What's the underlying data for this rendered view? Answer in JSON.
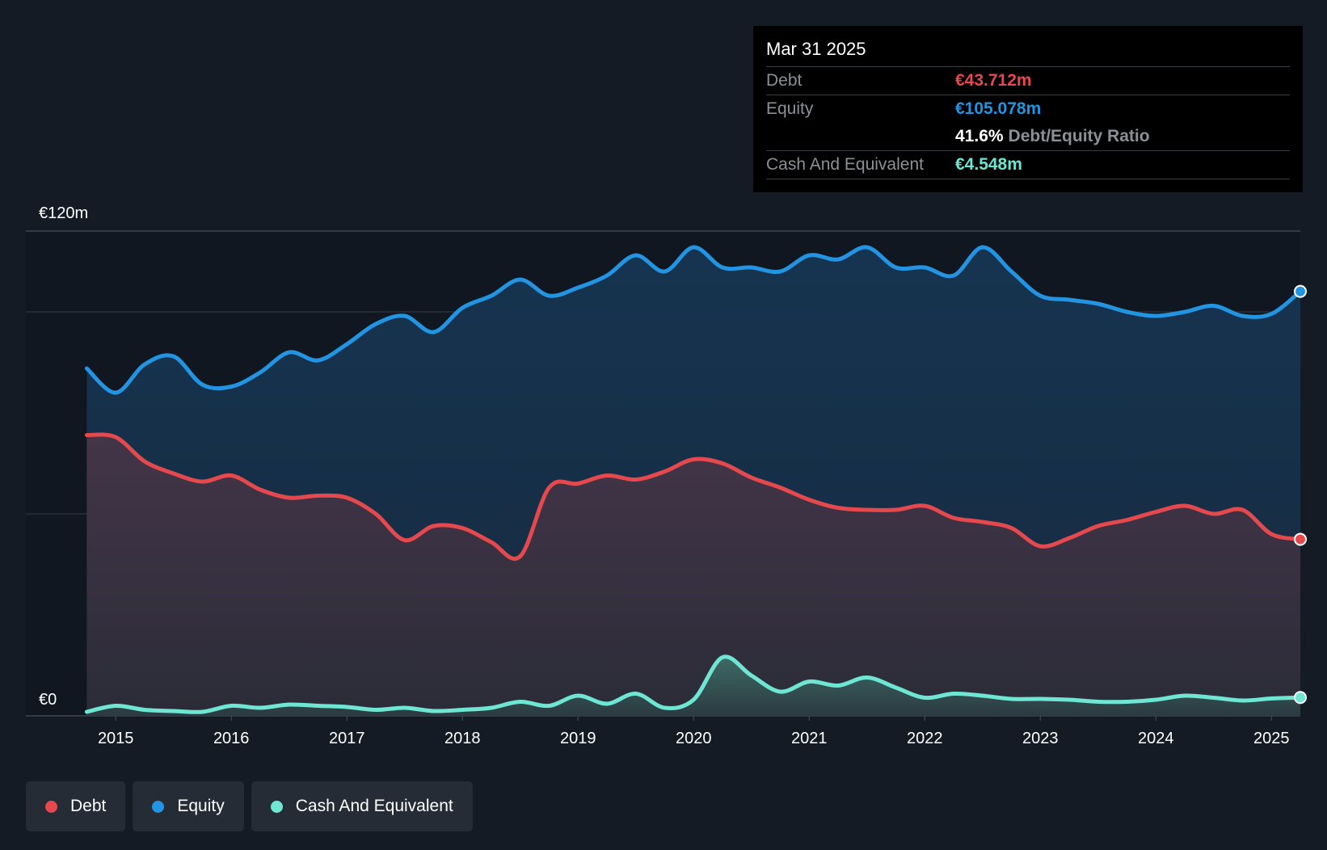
{
  "tooltip": {
    "date": "Mar 31 2025",
    "debt_label": "Debt",
    "debt_value": "€43.712m",
    "equity_label": "Equity",
    "equity_value": "€105.078m",
    "ratio_value": "41.6%",
    "ratio_label": "Debt/Equity Ratio",
    "cash_label": "Cash And Equivalent",
    "cash_value": "€4.548m"
  },
  "legend": [
    {
      "label": "Debt",
      "color": "#e5484d"
    },
    {
      "label": "Equity",
      "color": "#2394e2"
    },
    {
      "label": "Cash And Equivalent",
      "color": "#6ee6d3"
    }
  ],
  "chart_data": {
    "type": "area",
    "title": "",
    "xlabel": "",
    "ylabel": "",
    "ylim": [
      0,
      120
    ],
    "xlim": [
      2014.67,
      2025.25
    ],
    "y_tick_labels": [
      {
        "value": 120,
        "label": "€120m"
      },
      {
        "value": 0,
        "label": "€0"
      }
    ],
    "x_tick_labels": [
      {
        "value": 2015,
        "label": "2015"
      },
      {
        "value": 2016,
        "label": "2016"
      },
      {
        "value": 2017,
        "label": "2017"
      },
      {
        "value": 2018,
        "label": "2018"
      },
      {
        "value": 2019,
        "label": "2019"
      },
      {
        "value": 2020,
        "label": "2020"
      },
      {
        "value": 2021,
        "label": "2021"
      },
      {
        "value": 2022,
        "label": "2022"
      },
      {
        "value": 2023,
        "label": "2023"
      },
      {
        "value": 2024,
        "label": "2024"
      },
      {
        "value": 2025,
        "label": "2025"
      }
    ],
    "gridlines": [
      120,
      100,
      50,
      0
    ],
    "series": [
      {
        "name": "Equity",
        "color": "#2394e2",
        "points": [
          [
            2014.75,
            86
          ],
          [
            2015.0,
            80
          ],
          [
            2015.25,
            87
          ],
          [
            2015.5,
            89
          ],
          [
            2015.75,
            82
          ],
          [
            2016.0,
            81.5
          ],
          [
            2016.25,
            85
          ],
          [
            2016.5,
            90
          ],
          [
            2016.75,
            88
          ],
          [
            2017.0,
            92
          ],
          [
            2017.25,
            97
          ],
          [
            2017.5,
            99
          ],
          [
            2017.75,
            95
          ],
          [
            2018.0,
            101
          ],
          [
            2018.25,
            104
          ],
          [
            2018.5,
            108
          ],
          [
            2018.75,
            104
          ],
          [
            2019.0,
            106
          ],
          [
            2019.25,
            109
          ],
          [
            2019.5,
            114
          ],
          [
            2019.75,
            110
          ],
          [
            2020.0,
            116
          ],
          [
            2020.25,
            111
          ],
          [
            2020.5,
            111
          ],
          [
            2020.75,
            110
          ],
          [
            2021.0,
            114
          ],
          [
            2021.25,
            113
          ],
          [
            2021.5,
            116
          ],
          [
            2021.75,
            111
          ],
          [
            2022.0,
            111
          ],
          [
            2022.25,
            109
          ],
          [
            2022.5,
            116
          ],
          [
            2022.75,
            110
          ],
          [
            2023.0,
            104
          ],
          [
            2023.25,
            103
          ],
          [
            2023.5,
            102
          ],
          [
            2023.75,
            100
          ],
          [
            2024.0,
            99
          ],
          [
            2024.25,
            100
          ],
          [
            2024.5,
            101.5
          ],
          [
            2024.75,
            99
          ],
          [
            2025.0,
            99.5
          ],
          [
            2025.25,
            105.078
          ]
        ]
      },
      {
        "name": "Debt",
        "color": "#e5484d",
        "points": [
          [
            2014.75,
            69.5
          ],
          [
            2015.0,
            69
          ],
          [
            2015.25,
            63
          ],
          [
            2015.5,
            60
          ],
          [
            2015.75,
            58
          ],
          [
            2016.0,
            59.5
          ],
          [
            2016.25,
            56
          ],
          [
            2016.5,
            54
          ],
          [
            2016.75,
            54.5
          ],
          [
            2017.0,
            54
          ],
          [
            2017.25,
            50
          ],
          [
            2017.5,
            43.5
          ],
          [
            2017.75,
            47
          ],
          [
            2018.0,
            46.5
          ],
          [
            2018.25,
            43
          ],
          [
            2018.5,
            39.5
          ],
          [
            2018.75,
            56.5
          ],
          [
            2019.0,
            57.5
          ],
          [
            2019.25,
            59.5
          ],
          [
            2019.5,
            58.5
          ],
          [
            2019.75,
            60.5
          ],
          [
            2020.0,
            63.5
          ],
          [
            2020.25,
            62.5
          ],
          [
            2020.5,
            59
          ],
          [
            2020.75,
            56.5
          ],
          [
            2021.0,
            53.5
          ],
          [
            2021.25,
            51.5
          ],
          [
            2021.5,
            51
          ],
          [
            2021.75,
            51
          ],
          [
            2022.0,
            52
          ],
          [
            2022.25,
            49
          ],
          [
            2022.5,
            48
          ],
          [
            2022.75,
            46.5
          ],
          [
            2023.0,
            42
          ],
          [
            2023.25,
            44
          ],
          [
            2023.5,
            47
          ],
          [
            2023.75,
            48.5
          ],
          [
            2024.0,
            50.5
          ],
          [
            2024.25,
            52
          ],
          [
            2024.5,
            50
          ],
          [
            2024.75,
            51
          ],
          [
            2025.0,
            45
          ],
          [
            2025.25,
            43.712
          ]
        ]
      },
      {
        "name": "Cash And Equivalent",
        "color": "#6ee6d3",
        "points": [
          [
            2014.75,
            1
          ],
          [
            2015.0,
            2.5
          ],
          [
            2015.25,
            1.5
          ],
          [
            2015.5,
            1.2
          ],
          [
            2015.75,
            1
          ],
          [
            2016.0,
            2.5
          ],
          [
            2016.25,
            2
          ],
          [
            2016.5,
            2.8
          ],
          [
            2016.75,
            2.5
          ],
          [
            2017.0,
            2.2
          ],
          [
            2017.25,
            1.5
          ],
          [
            2017.5,
            2
          ],
          [
            2017.75,
            1.2
          ],
          [
            2018.0,
            1.5
          ],
          [
            2018.25,
            2
          ],
          [
            2018.5,
            3.5
          ],
          [
            2018.75,
            2.5
          ],
          [
            2019.0,
            5
          ],
          [
            2019.25,
            3
          ],
          [
            2019.5,
            5.5
          ],
          [
            2019.75,
            2
          ],
          [
            2020.0,
            4
          ],
          [
            2020.25,
            14.5
          ],
          [
            2020.5,
            10
          ],
          [
            2020.75,
            6
          ],
          [
            2021.0,
            8.5
          ],
          [
            2021.25,
            7.5
          ],
          [
            2021.5,
            9.5
          ],
          [
            2021.75,
            7
          ],
          [
            2022.0,
            4.5
          ],
          [
            2022.25,
            5.5
          ],
          [
            2022.5,
            5
          ],
          [
            2022.75,
            4.2
          ],
          [
            2023.0,
            4.2
          ],
          [
            2023.25,
            4
          ],
          [
            2023.5,
            3.5
          ],
          [
            2023.75,
            3.5
          ],
          [
            2024.0,
            4
          ],
          [
            2024.25,
            5
          ],
          [
            2024.5,
            4.5
          ],
          [
            2024.75,
            3.8
          ],
          [
            2025.0,
            4.3
          ],
          [
            2025.25,
            4.548
          ]
        ]
      }
    ]
  }
}
